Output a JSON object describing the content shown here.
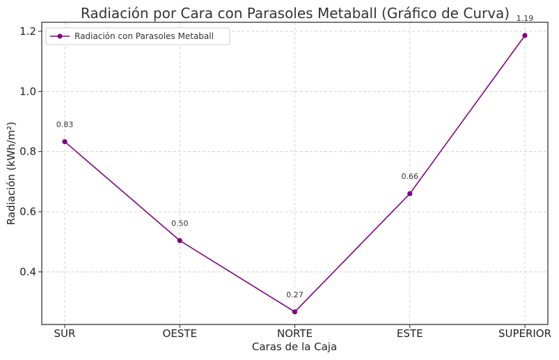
{
  "chart_data": {
    "type": "line",
    "title": "Radiación por Cara con Parasoles Metaball (Gráfico de Curva)",
    "xlabel": "Caras de la Caja",
    "ylabel": "Radiación (kWh/m²)",
    "categories": [
      "SUR",
      "OESTE",
      "NORTE",
      "ESTE",
      "SUPERIOR"
    ],
    "series": [
      {
        "name": "Radiación con Parasoles Metaball",
        "values": [
          0.833,
          0.504,
          0.267,
          0.66,
          1.186
        ],
        "labels": [
          "0.83",
          "0.50",
          "0.27",
          "0.66",
          "1.19"
        ],
        "color": "#800080"
      }
    ],
    "ylim": [
      0.225,
      1.23
    ],
    "yticks": [
      0.4,
      0.6,
      0.8,
      1.0,
      1.2
    ],
    "ytick_labels": [
      "0.4",
      "0.6",
      "0.8",
      "1.0",
      "1.2"
    ],
    "grid": true,
    "legend_position": "top-left"
  }
}
